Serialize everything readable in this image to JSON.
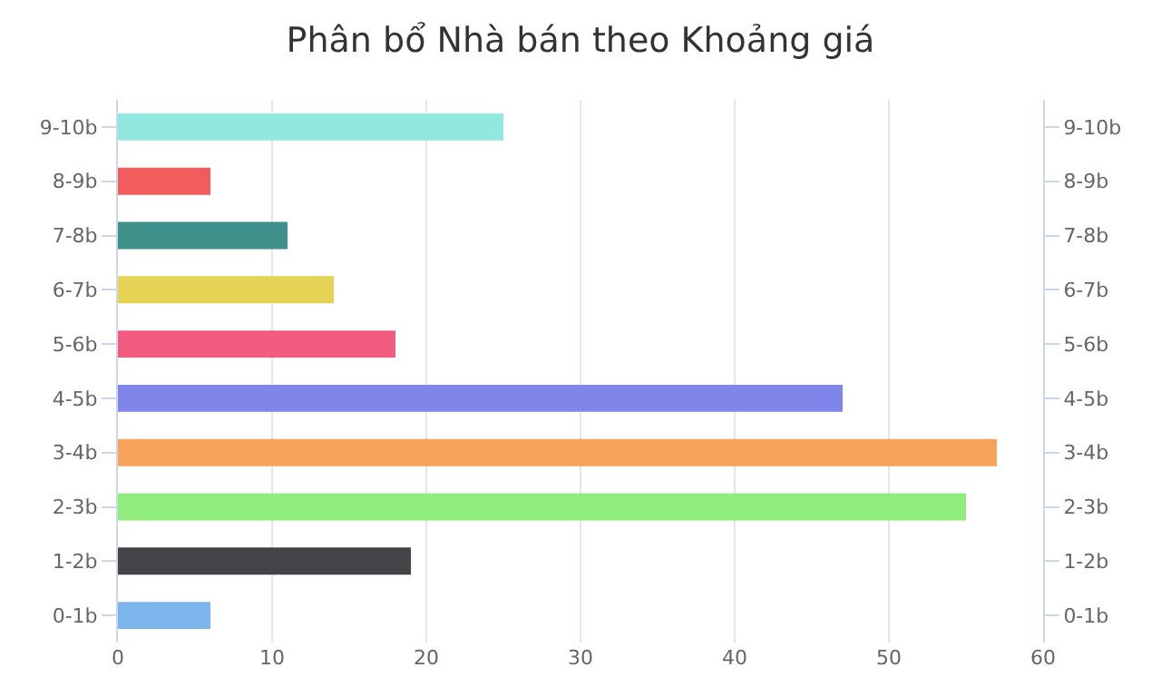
{
  "chart_data": {
    "type": "bar",
    "orientation": "horizontal",
    "title": "Phân bổ Nhà bán theo Khoảng giá",
    "categories": [
      "9-10b",
      "8-9b",
      "7-8b",
      "6-7b",
      "5-6b",
      "4-5b",
      "3-4b",
      "2-3b",
      "1-2b",
      "0-1b"
    ],
    "y2_categories": [
      "9-10b",
      "8-9b",
      "7-8b",
      "6-7b",
      "5-6b",
      "4-5b",
      "3-4b",
      "2-3b",
      "1-2b",
      "0-1b"
    ],
    "values": [
      25,
      6,
      11,
      14,
      18,
      47,
      57,
      55,
      19,
      6
    ],
    "colors": [
      "#91e8e1",
      "#f15c5c",
      "#3d918a",
      "#e4d354",
      "#f15c80",
      "#8085e9",
      "#f7a35c",
      "#90ed7d",
      "#434348",
      "#7cb5ec"
    ],
    "xlim": [
      0,
      60
    ],
    "xticks": [
      0,
      10,
      20,
      30,
      40,
      50,
      60
    ],
    "grid": "x"
  }
}
